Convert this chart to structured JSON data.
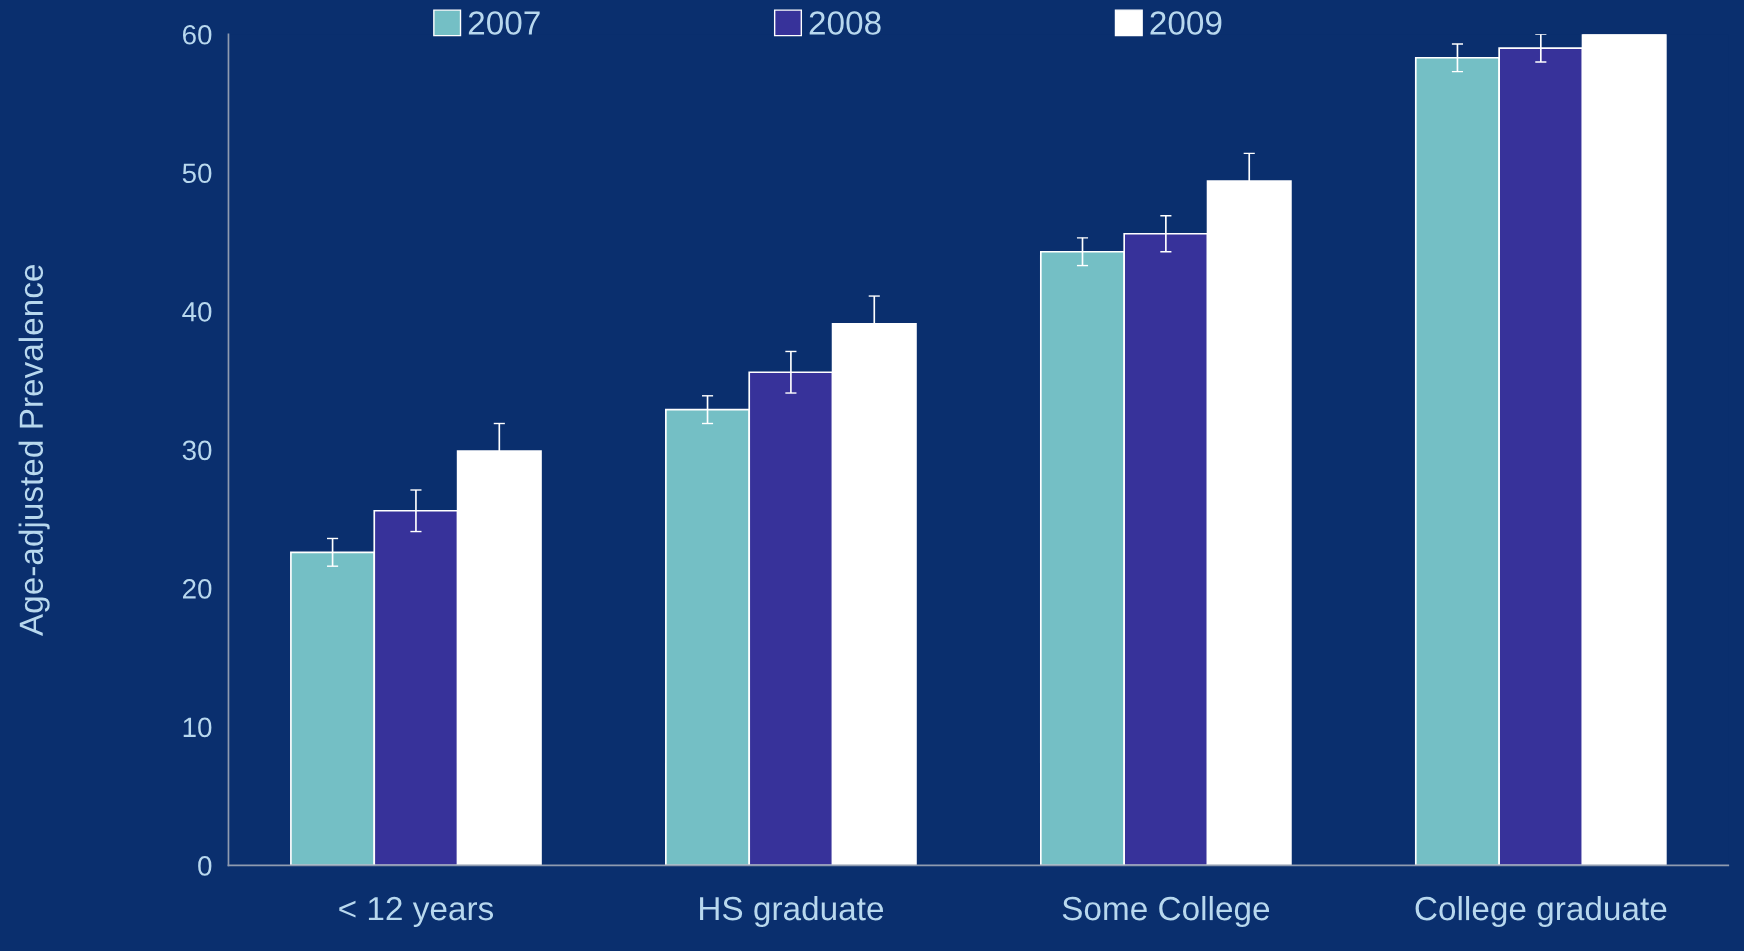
{
  "chart_data": {
    "type": "bar",
    "ylabel": "Age-adjusted Prevalence",
    "categories": [
      "< 12 years",
      "HS graduate",
      "Some College",
      "College graduate"
    ],
    "series": [
      {
        "name": "2007",
        "color": "#74bfc5",
        "values": [
          22.6,
          32.9,
          44.3,
          58.3
        ],
        "errors": [
          1.0,
          1.0,
          1.0,
          1.0
        ]
      },
      {
        "name": "2008",
        "color": "#37329a",
        "values": [
          25.6,
          35.6,
          45.6,
          59.0
        ],
        "errors": [
          1.5,
          1.5,
          1.3,
          1.0
        ]
      },
      {
        "name": "2009",
        "color": "#ffffff",
        "values": [
          29.9,
          39.1,
          49.4,
          60.0
        ],
        "errors": [
          2.0,
          2.0,
          2.0,
          null
        ]
      }
    ],
    "ylim": [
      0,
      60
    ],
    "yticks": [
      0,
      10,
      20,
      30,
      40,
      50,
      60
    ],
    "grid": false,
    "legend": "top"
  }
}
